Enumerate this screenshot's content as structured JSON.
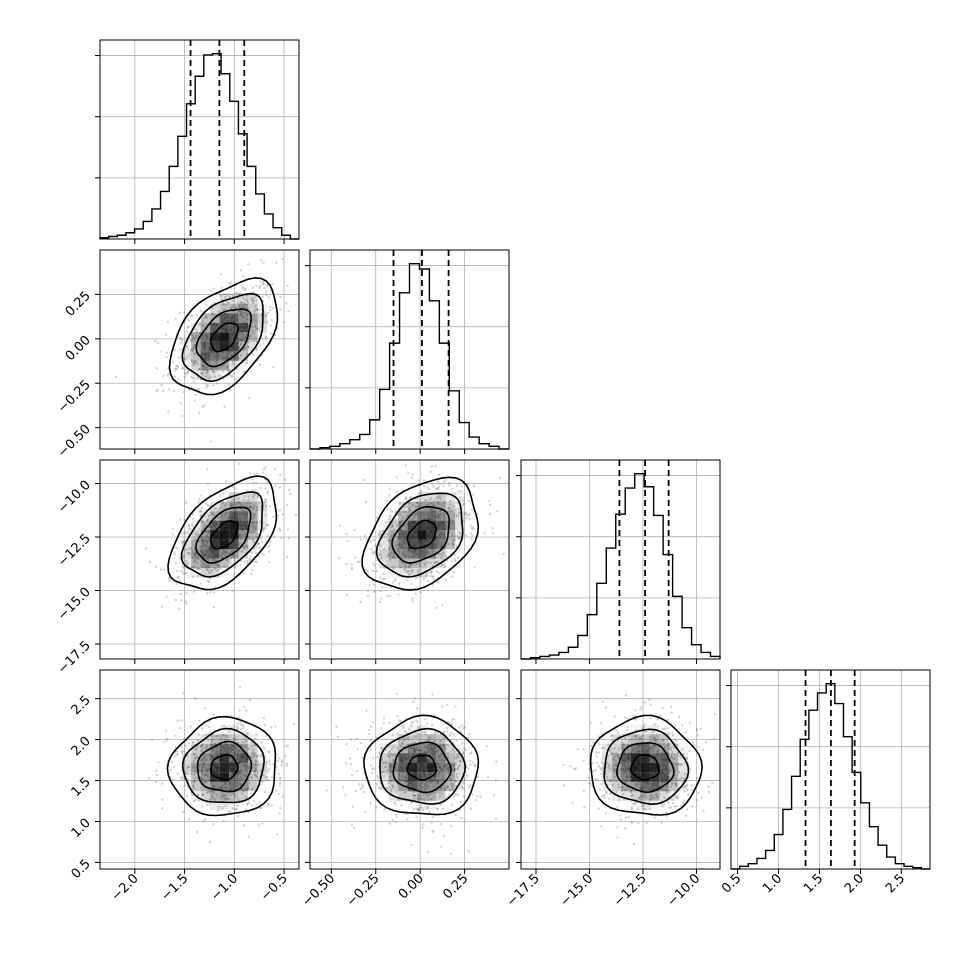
{
  "chart_data": {
    "type": "corner",
    "n_params": 4,
    "axes": [
      {
        "lim": [
          -2.35,
          -0.35
        ],
        "ticks": [
          -2.0,
          -1.5,
          -1.0,
          -0.5
        ],
        "tick_labels": [
          "−2.0",
          "−1.5",
          "−1.0",
          "−0.5"
        ]
      },
      {
        "lim": [
          -0.62,
          0.5
        ],
        "ticks": [
          -0.5,
          -0.25,
          0.0,
          0.25
        ],
        "tick_labels": [
          "−0.50",
          "−0.25",
          "0.00",
          "0.25"
        ]
      },
      {
        "lim": [
          -18.2,
          -8.9
        ],
        "ticks": [
          -17.5,
          -15.0,
          -12.5,
          -10.0
        ],
        "tick_labels": [
          "−17.5",
          "−15.0",
          "−12.5",
          "−10.0"
        ]
      },
      {
        "lim": [
          0.42,
          2.85
        ],
        "ticks": [
          0.5,
          1.0,
          1.5,
          2.0,
          2.5
        ],
        "tick_labels": [
          "0.5",
          "1.0",
          "1.5",
          "2.0",
          "2.5"
        ]
      }
    ],
    "marginals": [
      {
        "param": 0,
        "bin_edges_lim": [
          -2.35,
          -0.35
        ],
        "counts": [
          1,
          2,
          3,
          5,
          8,
          14,
          24,
          38,
          58,
          82,
          108,
          130,
          147,
          148,
          132,
          110,
          84,
          58,
          36,
          20,
          9,
          3,
          0
        ],
        "quantiles": [
          -1.44,
          -1.15,
          -0.9
        ]
      },
      {
        "param": 1,
        "bin_edges_lim": [
          -0.62,
          0.5
        ],
        "counts": [
          0,
          1,
          2,
          4,
          7,
          11,
          22,
          45,
          80,
          118,
          140,
          136,
          112,
          80,
          44,
          20,
          9,
          4,
          2,
          0
        ],
        "quantiles": [
          -0.15,
          0.01,
          0.16
        ]
      },
      {
        "param": 2,
        "bin_edges_lim": [
          -18.2,
          -8.9
        ],
        "counts": [
          0,
          1,
          2,
          3,
          5,
          9,
          18,
          34,
          58,
          85,
          111,
          131,
          142,
          132,
          110,
          80,
          48,
          24,
          11,
          5,
          2
        ],
        "quantiles": [
          -13.6,
          -12.4,
          -11.3
        ]
      },
      {
        "param": 3,
        "bin_edges_lim": [
          0.42,
          2.85
        ],
        "counts": [
          0,
          2,
          4,
          8,
          14,
          26,
          45,
          70,
          98,
          120,
          133,
          140,
          125,
          100,
          73,
          50,
          32,
          18,
          9,
          4,
          2,
          1,
          0
        ],
        "quantiles": [
          1.33,
          1.64,
          1.93
        ]
      }
    ],
    "joint": [
      {
        "x": 0,
        "y": 1,
        "mean": [
          -1.1,
          0.01
        ],
        "sd": [
          0.27,
          0.16
        ],
        "rho": 0.45
      },
      {
        "x": 0,
        "y": 2,
        "mean": [
          -1.1,
          -12.4
        ],
        "sd": [
          0.27,
          1.3
        ],
        "rho": 0.5
      },
      {
        "x": 1,
        "y": 2,
        "mean": [
          0.01,
          -12.4
        ],
        "sd": [
          0.16,
          1.3
        ],
        "rho": 0.35
      },
      {
        "x": 0,
        "y": 3,
        "mean": [
          -1.1,
          1.66
        ],
        "sd": [
          0.27,
          0.3
        ],
        "rho": 0.05
      },
      {
        "x": 1,
        "y": 3,
        "mean": [
          0.01,
          1.66
        ],
        "sd": [
          0.16,
          0.3
        ],
        "rho": 0.0
      },
      {
        "x": 2,
        "y": 3,
        "mean": [
          -12.4,
          1.66
        ],
        "sd": [
          1.3,
          0.3
        ],
        "rho": -0.03
      }
    ],
    "contour_levels_sigma": [
      0.5,
      1.0,
      1.5,
      2.0
    ],
    "grid": true,
    "title": "",
    "colors": {
      "line": "#000000",
      "grid": "#b0b0b0",
      "points": "#7f7f7f",
      "density": "#000000"
    }
  }
}
